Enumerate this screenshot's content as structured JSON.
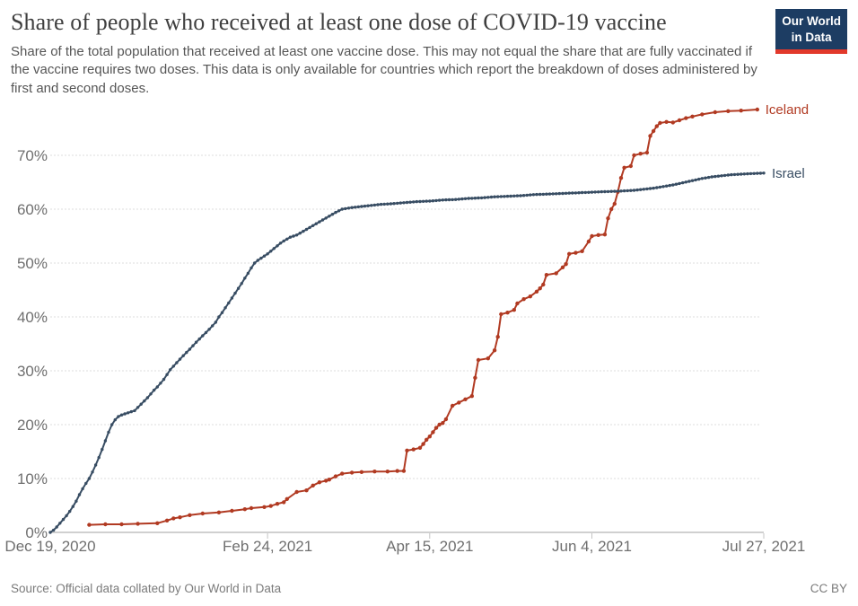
{
  "header": {
    "title": "Share of people who received at least one dose of COVID-19 vaccine",
    "subtitle": "Share of the total population that received at least one vaccine dose. This may not equal the share that are fully vaccinated if the vaccine requires two doses. This data is only available for countries which report the breakdown of doses administered by first and second doses.",
    "logo": {
      "line1": "Our World",
      "line2": "in Data",
      "bg_color": "#1d3d63",
      "stripe_color": "#e2392b"
    }
  },
  "footer": {
    "source": "Source: Official data collated by Our World in Data",
    "license": "CC BY"
  },
  "chart_data": {
    "type": "line",
    "title": "Share of people who received at least one dose of COVID-19 vaccine",
    "xlabel": "",
    "ylabel": "",
    "grid": "dashed-horizontal",
    "legend_position": "right-of-line-end",
    "x_axis": {
      "start_date": "Dec 19, 2020",
      "end_date": "Jul 27, 2021",
      "range_days": [
        0,
        220
      ],
      "ticks": [
        {
          "label": "Dec 19, 2020",
          "day": 0
        },
        {
          "label": "Feb 24, 2021",
          "day": 67
        },
        {
          "label": "Apr 15, 2021",
          "day": 117
        },
        {
          "label": "Jun 4, 2021",
          "day": 167
        },
        {
          "label": "Jul 27, 2021",
          "day": 220
        }
      ]
    },
    "y_axis": {
      "unit": "%",
      "range": [
        0,
        80
      ],
      "ticks": [
        {
          "label": "0%",
          "value": 0
        },
        {
          "label": "10%",
          "value": 10
        },
        {
          "label": "20%",
          "value": 20
        },
        {
          "label": "30%",
          "value": 30
        },
        {
          "label": "40%",
          "value": 40
        },
        {
          "label": "50%",
          "value": 50
        },
        {
          "label": "60%",
          "value": 60
        },
        {
          "label": "70%",
          "value": 70
        }
      ]
    },
    "series": [
      {
        "name": "Iceland",
        "color": "#b13a22",
        "daily_markers": false,
        "marker_radius": 2.2,
        "points": [
          [
            12,
            1.4
          ],
          [
            17,
            1.5
          ],
          [
            22,
            1.5
          ],
          [
            27,
            1.6
          ],
          [
            33,
            1.7
          ],
          [
            36,
            2.2
          ],
          [
            38,
            2.6
          ],
          [
            40,
            2.8
          ],
          [
            43,
            3.2
          ],
          [
            47,
            3.5
          ],
          [
            52,
            3.7
          ],
          [
            56,
            4.0
          ],
          [
            60,
            4.3
          ],
          [
            62,
            4.5
          ],
          [
            66,
            4.7
          ],
          [
            68,
            4.9
          ],
          [
            70,
            5.3
          ],
          [
            72,
            5.6
          ],
          [
            73,
            6.2
          ],
          [
            76,
            7.5
          ],
          [
            79,
            7.8
          ],
          [
            81,
            8.7
          ],
          [
            83,
            9.3
          ],
          [
            85,
            9.6
          ],
          [
            86,
            9.8
          ],
          [
            88,
            10.4
          ],
          [
            90,
            10.9
          ],
          [
            93,
            11.1
          ],
          [
            96,
            11.2
          ],
          [
            100,
            11.3
          ],
          [
            104,
            11.3
          ],
          [
            107,
            11.4
          ],
          [
            109,
            11.4
          ],
          [
            110,
            15.2
          ],
          [
            112,
            15.4
          ],
          [
            114,
            15.7
          ],
          [
            115,
            16.4
          ],
          [
            116,
            17.2
          ],
          [
            117,
            17.8
          ],
          [
            118,
            18.6
          ],
          [
            119,
            19.4
          ],
          [
            120,
            20.0
          ],
          [
            121,
            20.3
          ],
          [
            122,
            21.0
          ],
          [
            124,
            23.5
          ],
          [
            126,
            24.1
          ],
          [
            128,
            24.7
          ],
          [
            130,
            25.3
          ],
          [
            131,
            28.7
          ],
          [
            132,
            32.0
          ],
          [
            135,
            32.3
          ],
          [
            137,
            33.8
          ],
          [
            138,
            36.3
          ],
          [
            139,
            40.5
          ],
          [
            141,
            40.8
          ],
          [
            143,
            41.3
          ],
          [
            144,
            42.5
          ],
          [
            146,
            43.3
          ],
          [
            148,
            43.8
          ],
          [
            150,
            44.7
          ],
          [
            151,
            45.3
          ],
          [
            152,
            46.0
          ],
          [
            153,
            47.8
          ],
          [
            156,
            48.1
          ],
          [
            158,
            49.2
          ],
          [
            159,
            49.8
          ],
          [
            160,
            51.7
          ],
          [
            162,
            51.9
          ],
          [
            164,
            52.2
          ],
          [
            166,
            54.0
          ],
          [
            167,
            55.0
          ],
          [
            169,
            55.2
          ],
          [
            171,
            55.3
          ],
          [
            172,
            58.3
          ],
          [
            173,
            60.0
          ],
          [
            174,
            61.0
          ],
          [
            175,
            63.2
          ],
          [
            176,
            65.8
          ],
          [
            177,
            67.7
          ],
          [
            179,
            68.0
          ],
          [
            180,
            70.0
          ],
          [
            182,
            70.3
          ],
          [
            184,
            70.5
          ],
          [
            185,
            73.6
          ],
          [
            186,
            74.5
          ],
          [
            187,
            75.4
          ],
          [
            188,
            76.0
          ],
          [
            190,
            76.2
          ],
          [
            192,
            76.1
          ],
          [
            194,
            76.5
          ],
          [
            196,
            76.9
          ],
          [
            198,
            77.2
          ],
          [
            201,
            77.6
          ],
          [
            205,
            78.0
          ],
          [
            209,
            78.2
          ],
          [
            213,
            78.3
          ],
          [
            218,
            78.5
          ]
        ]
      },
      {
        "name": "Israel",
        "color": "#384d63",
        "daily_markers": true,
        "marker_radius": 1.7,
        "points": [
          [
            0,
            0
          ],
          [
            1,
            0.4
          ],
          [
            2,
            1.0
          ],
          [
            3,
            1.7
          ],
          [
            4,
            2.4
          ],
          [
            5,
            3.1
          ],
          [
            6,
            3.9
          ],
          [
            7,
            4.8
          ],
          [
            8,
            5.8
          ],
          [
            9,
            7.0
          ],
          [
            10,
            8.1
          ],
          [
            11,
            9.1
          ],
          [
            12,
            10.0
          ],
          [
            13,
            11.2
          ],
          [
            14,
            12.5
          ],
          [
            15,
            13.9
          ],
          [
            16,
            15.4
          ],
          [
            17,
            17.0
          ],
          [
            18,
            18.6
          ],
          [
            19,
            20.0
          ],
          [
            20,
            20.9
          ],
          [
            21,
            21.5
          ],
          [
            22,
            21.8
          ],
          [
            23,
            22.0
          ],
          [
            24,
            22.2
          ],
          [
            25,
            22.4
          ],
          [
            26,
            22.6
          ],
          [
            28,
            23.8
          ],
          [
            30,
            25.0
          ],
          [
            32,
            26.4
          ],
          [
            33,
            27.0
          ],
          [
            35,
            28.4
          ],
          [
            37,
            30.2
          ],
          [
            39,
            31.5
          ],
          [
            41,
            32.8
          ],
          [
            43,
            34.0
          ],
          [
            45,
            35.3
          ],
          [
            47,
            36.5
          ],
          [
            49,
            37.7
          ],
          [
            51,
            39.0
          ],
          [
            52,
            40.0
          ],
          [
            53,
            40.8
          ],
          [
            54,
            41.7
          ],
          [
            55,
            42.6
          ],
          [
            56,
            43.5
          ],
          [
            57,
            44.4
          ],
          [
            58,
            45.3
          ],
          [
            59,
            46.2
          ],
          [
            60,
            47.2
          ],
          [
            61,
            48.1
          ],
          [
            62,
            49.1
          ],
          [
            63,
            50.0
          ],
          [
            64,
            50.5
          ],
          [
            65,
            50.9
          ],
          [
            66,
            51.3
          ],
          [
            67,
            51.7
          ],
          [
            68,
            52.2
          ],
          [
            69,
            52.7
          ],
          [
            70,
            53.2
          ],
          [
            71,
            53.7
          ],
          [
            72,
            54.1
          ],
          [
            74,
            54.8
          ],
          [
            76,
            55.2
          ],
          [
            78,
            55.9
          ],
          [
            80,
            56.6
          ],
          [
            82,
            57.3
          ],
          [
            84,
            58.0
          ],
          [
            86,
            58.7
          ],
          [
            88,
            59.4
          ],
          [
            90,
            60.0
          ],
          [
            93,
            60.3
          ],
          [
            96,
            60.5
          ],
          [
            99,
            60.7
          ],
          [
            102,
            60.9
          ],
          [
            105,
            61.0
          ],
          [
            109,
            61.2
          ],
          [
            113,
            61.4
          ],
          [
            117,
            61.5
          ],
          [
            121,
            61.7
          ],
          [
            125,
            61.8
          ],
          [
            129,
            62.0
          ],
          [
            133,
            62.1
          ],
          [
            137,
            62.3
          ],
          [
            141,
            62.4
          ],
          [
            145,
            62.5
          ],
          [
            149,
            62.7
          ],
          [
            153,
            62.8
          ],
          [
            157,
            62.9
          ],
          [
            161,
            63.0
          ],
          [
            165,
            63.1
          ],
          [
            169,
            63.2
          ],
          [
            173,
            63.3
          ],
          [
            177,
            63.4
          ],
          [
            180,
            63.5
          ],
          [
            183,
            63.7
          ],
          [
            186,
            63.9
          ],
          [
            189,
            64.2
          ],
          [
            192,
            64.5
          ],
          [
            195,
            64.9
          ],
          [
            198,
            65.3
          ],
          [
            201,
            65.7
          ],
          [
            204,
            66.0
          ],
          [
            207,
            66.2
          ],
          [
            210,
            66.4
          ],
          [
            213,
            66.5
          ],
          [
            216,
            66.6
          ],
          [
            220,
            66.7
          ]
        ]
      }
    ],
    "style": {
      "gridline_color": "#dcdcdc",
      "axis_line_color": "#d0d0d0",
      "tick_mark_color": "#c4c4c4",
      "axis_label_color": "#6f6f6f"
    }
  }
}
